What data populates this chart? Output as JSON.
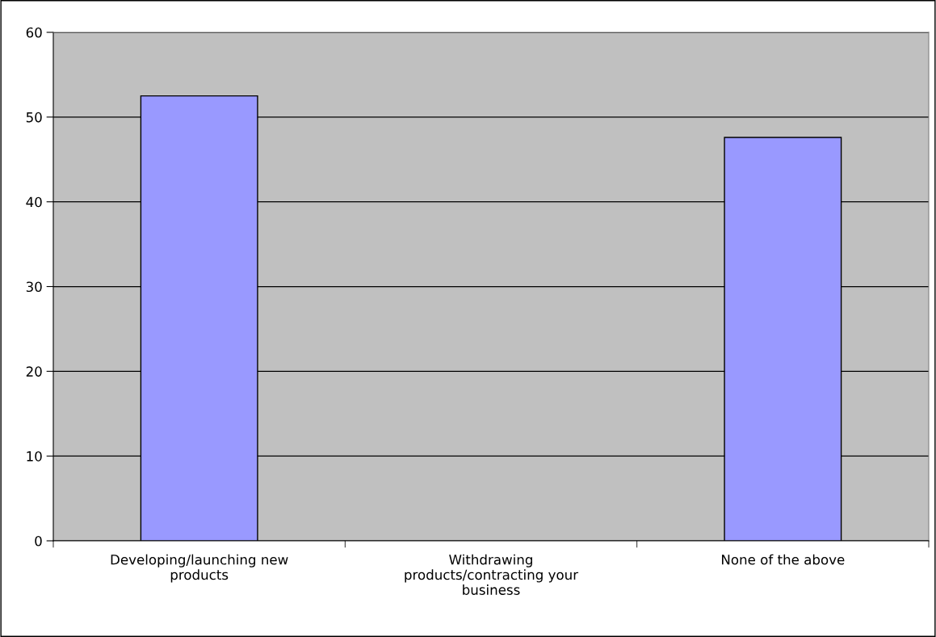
{
  "chart_data": {
    "type": "bar",
    "categories": [
      "Developing/launching new\nproducts",
      "Withdrawing\nproducts/contracting your\nbusiness",
      "None of the above"
    ],
    "values": [
      52.5,
      0,
      47.6
    ],
    "color": "#9999ff",
    "ylim": [
      0,
      60
    ],
    "yticks": [
      0,
      10,
      20,
      30,
      40,
      50,
      60
    ],
    "grid": "y",
    "legend": false
  }
}
